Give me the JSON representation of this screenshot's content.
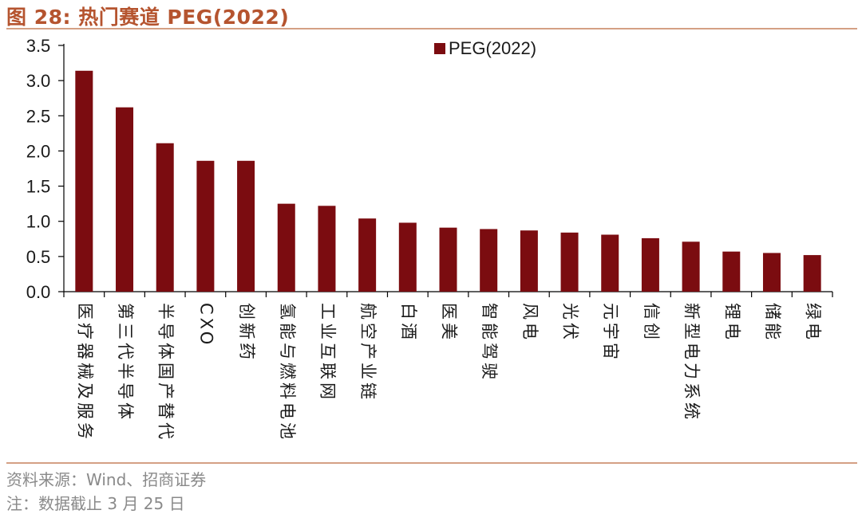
{
  "figure": {
    "title": "图 28:  热门赛道 PEG(2022)",
    "source": "资料来源：Wind、招商证券",
    "note": "注：数据截止 3 月 25 日"
  },
  "colors": {
    "bar": "#7b0c10",
    "accent": "#b5542f",
    "rule": "#d4a084"
  },
  "chart_data": {
    "type": "bar",
    "title": "",
    "xlabel": "",
    "ylabel": "",
    "ylim": [
      0,
      3.5
    ],
    "yticks": [
      "0.0",
      "0.5",
      "1.0",
      "1.5",
      "2.0",
      "2.5",
      "3.0",
      "3.5"
    ],
    "grid": false,
    "legend": "top-center",
    "categories": [
      "医疗器械及服务",
      "第三代半导体",
      "半导体国产替代",
      "CXO",
      "创新药",
      "氢能与燃料电池",
      "工业互联网",
      "航空产业链",
      "白酒",
      "医美",
      "智能驾驶",
      "风电",
      "光伏",
      "元宇宙",
      "信创",
      "新型电力系统",
      "锂电",
      "储能",
      "绿电"
    ],
    "series": [
      {
        "name": "PEG(2022)",
        "values": [
          3.14,
          2.62,
          2.11,
          1.86,
          1.86,
          1.25,
          1.22,
          1.04,
          0.98,
          0.91,
          0.89,
          0.87,
          0.84,
          0.81,
          0.76,
          0.71,
          0.57,
          0.55,
          0.52
        ]
      }
    ]
  }
}
